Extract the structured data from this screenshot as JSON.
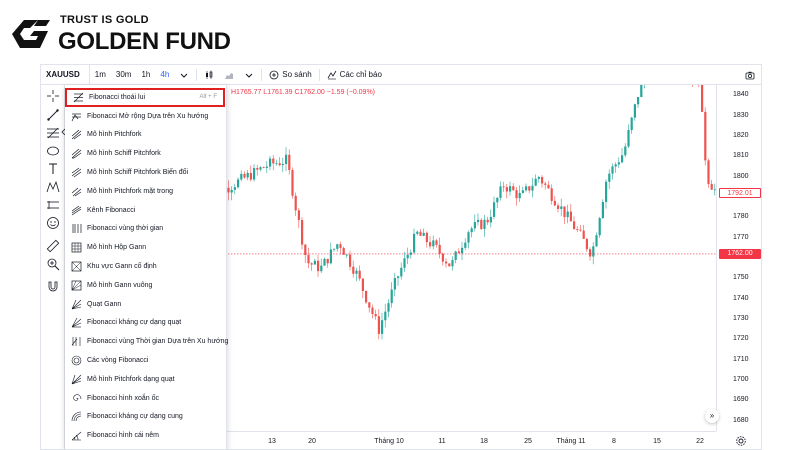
{
  "brand": {
    "tagline": "TRUST IS GOLD",
    "name": "GOLDEN FUND"
  },
  "toolbar": {
    "symbol": "XAUUSD",
    "intervals": [
      "1m",
      "30m",
      "1h",
      "4h"
    ],
    "active_interval": "4h",
    "compare_label": "So sánh",
    "indicators_label": "Các chỉ báo"
  },
  "ohlc": {
    "text": "H1765.77 L1761.39 C1762.00 −1.59 (−0.09%)"
  },
  "drawing_menu": {
    "items": [
      {
        "label": "Fibonacci thoái lui",
        "hotkey": "Alt + F",
        "icon": "fib-retracement-icon",
        "selected": true
      },
      {
        "label": "Fibonacci Mở rộng Dựa trên Xu hướng",
        "icon": "fib-extension-icon"
      },
      {
        "label": "Mô hình Pitchfork",
        "icon": "pitchfork-icon"
      },
      {
        "label": "Mô hình Schiff Pitchfork",
        "icon": "schiff-pitchfork-icon"
      },
      {
        "label": "Mô hình Schiff Pitchfork Biến đổi",
        "icon": "modified-schiff-icon"
      },
      {
        "label": "Mô hình Pitchfork mặt trong",
        "icon": "inside-pitchfork-icon"
      },
      {
        "label": "Kênh Fibonacci",
        "icon": "fib-channel-icon"
      },
      {
        "label": "Fibonacci vùng thời gian",
        "icon": "fib-timezone-icon"
      },
      {
        "label": "Mô hình Hộp Gann",
        "icon": "gann-box-icon"
      },
      {
        "label": "Khu vực Gann cố định",
        "icon": "gann-square-fixed-icon"
      },
      {
        "label": "Mô hình Gann vuông",
        "icon": "gann-square-icon"
      },
      {
        "label": "Quạt Gann",
        "icon": "gann-fan-icon"
      },
      {
        "label": "Fibonacci kháng cự dạng quạt",
        "icon": "fib-fan-icon"
      },
      {
        "label": "Fibonacci vùng Thời gian Dựa trên Xu hướng",
        "icon": "trend-fib-time-icon"
      },
      {
        "label": "Các vòng Fibonacci",
        "icon": "fib-circles-icon"
      },
      {
        "label": "Mô hình Pitchfork dạng quạt",
        "icon": "pitchfan-icon"
      },
      {
        "label": "Fibonacci hình xoắn ốc",
        "icon": "fib-spiral-icon"
      },
      {
        "label": "Fibonacci kháng cự dạng cung",
        "icon": "fib-arcs-icon"
      },
      {
        "label": "Fibonacci hình cái nêm",
        "icon": "fib-wedge-icon"
      }
    ]
  },
  "chart_data": {
    "type": "candlestick",
    "price_ticks": [
      1840,
      1830,
      1820,
      1810,
      1800,
      1790,
      1780,
      1770,
      1760,
      1750,
      1740,
      1730,
      1720,
      1710,
      1700,
      1690,
      1680
    ],
    "time_ticks": [
      "13",
      "20",
      "Tháng 10",
      "11",
      "18",
      "25",
      "Tháng 11",
      "8",
      "15",
      "22"
    ],
    "current_price": "1762.00",
    "marker_price": "1792.01",
    "up_color": "#26a69a",
    "down_color": "#ef5350"
  },
  "colors": {
    "accent": "#2962ff",
    "price_tag": "#f23645",
    "selection_border": "#e02020"
  }
}
